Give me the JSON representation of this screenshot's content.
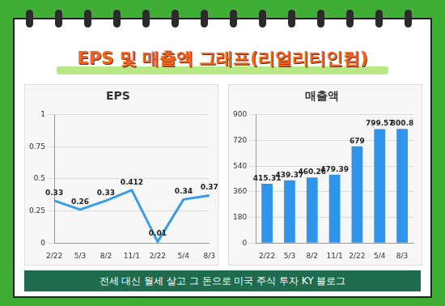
{
  "header": {
    "title": "EPS 및 매출액 그래프(리얼리티인컴)"
  },
  "chart_data": [
    {
      "type": "line",
      "title": "EPS",
      "categories": [
        "2/22",
        "5/3",
        "8/2",
        "11/1",
        "2/22",
        "5/4",
        "8/3"
      ],
      "values": [
        0.33,
        0.26,
        0.33,
        0.412,
        0.01,
        0.34,
        0.37
      ],
      "color": "#3a9be6",
      "ylim": [
        0,
        1
      ],
      "yticks": [
        0,
        0.25,
        0.5,
        0.75,
        1
      ],
      "grid": true,
      "data_labels": true
    },
    {
      "type": "bar",
      "title": "매출액",
      "categories": [
        "2/22",
        "5/3",
        "8/2",
        "11/1",
        "2/22",
        "5/4",
        "8/3"
      ],
      "values": [
        415.31,
        439.37,
        460.26,
        479.39,
        679,
        799.57,
        800.8
      ],
      "color": "#2f95ea",
      "ylim": [
        0,
        900
      ],
      "yticks": [
        0,
        180,
        360,
        540,
        720,
        900
      ],
      "grid": true,
      "data_labels": true
    }
  ],
  "footer": {
    "text": "전세 대신 월세 살고 그 돈으로 미국 주식 투자 KY 블로그"
  }
}
